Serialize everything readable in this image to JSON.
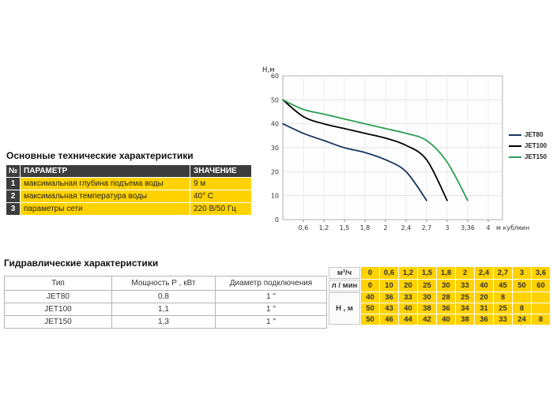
{
  "chart_data": {
    "type": "line",
    "title": "",
    "ylabel": "Н,м",
    "xlabel_unit": "м куб/мин",
    "ylim": [
      0,
      60
    ],
    "y_ticks": [
      0,
      10,
      20,
      30,
      40,
      50,
      60
    ],
    "x_tick_labels": [
      "0,6",
      "1,2",
      "1,5",
      "1,8",
      "2",
      "2,4",
      "2,7",
      "3",
      "3,36",
      "4"
    ],
    "x_values": [
      0,
      0.6,
      1.2,
      1.5,
      1.8,
      2,
      2.4,
      2.7,
      3,
      3.6
    ],
    "grid": true,
    "legend_position": "right",
    "series": [
      {
        "name": "JET80",
        "color": "#17375e",
        "values": [
          40,
          36,
          33,
          30,
          28,
          25,
          20,
          8
        ]
      },
      {
        "name": "JET100",
        "color": "#000000",
        "values": [
          50,
          43,
          40,
          38,
          36,
          34,
          31,
          25,
          8
        ]
      },
      {
        "name": "JET150",
        "color": "#2e9e53",
        "values": [
          50,
          46,
          44,
          42,
          40,
          38,
          36,
          33,
          24,
          8
        ]
      }
    ]
  },
  "main_specs": {
    "heading": "Основные технические характеристики",
    "columns": {
      "num": "№",
      "param": "ПАРАМЕТР",
      "value": "ЗНАЧЕНИЕ"
    },
    "rows": [
      {
        "num": "1",
        "param": "максимальная глубина подъема воды",
        "value": "9 м"
      },
      {
        "num": "2",
        "param": "максимальная температура воды",
        "value": "40° С"
      },
      {
        "num": "3",
        "param": "параметры сети",
        "value": "220 В/50 Гц"
      }
    ]
  },
  "hydraulic": {
    "heading": "Гидравлические характеристики",
    "columns": {
      "type": "Тип",
      "power": "Мощность Р , кВт",
      "diameter": "Диаметр подключения"
    },
    "rows": [
      {
        "type": "JET80",
        "power": "0,8",
        "diameter": "1 \""
      },
      {
        "type": "JET100",
        "power": "1,1",
        "diameter": "1 \""
      },
      {
        "type": "JET150",
        "power": "1,3",
        "diameter": "1 \""
      }
    ]
  },
  "flow_table": {
    "row_labels": {
      "m3h": "м³/ч",
      "lmin": "л / мин",
      "head": "Н , м"
    },
    "rows": [
      [
        "0",
        "0,6",
        "1,2",
        "1,5",
        "1,8",
        "2",
        "2,4",
        "2,7",
        "3",
        "3,6"
      ],
      [
        "0",
        "10",
        "20",
        "25",
        "30",
        "33",
        "40",
        "45",
        "50",
        "60"
      ],
      [
        "40",
        "36",
        "33",
        "30",
        "28",
        "25",
        "20",
        "8",
        "",
        ""
      ],
      [
        "50",
        "43",
        "40",
        "38",
        "36",
        "34",
        "31",
        "25",
        "8",
        ""
      ],
      [
        "50",
        "46",
        "44",
        "42",
        "40",
        "38",
        "36",
        "33",
        "24",
        "8"
      ]
    ]
  },
  "colors": {
    "accent_yellow": "#ffd200",
    "header_dark": "#3d3d3d"
  }
}
